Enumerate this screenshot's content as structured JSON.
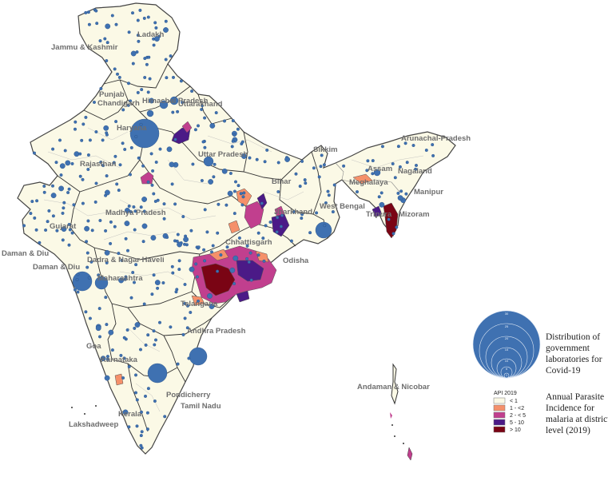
{
  "state_labels": [
    "Ladakh",
    "Jammu & Kashmir",
    "Himachal Pradesh",
    "Punjab",
    "Chandigarh",
    "Uttarakhand",
    "Haryana",
    "Uttar Pradesh",
    "Sikkim",
    "Arunachal-Pradesh",
    "Rajasthan",
    "Assam",
    "Nagaland",
    "Bihar",
    "Meghalaya",
    "Manipur",
    "West Bengal",
    "Jharkhand",
    "Madhya Pradesh",
    "Tripura",
    "Mizoram",
    "Gujarat",
    "Daman & Diu",
    "Chhattisgarh",
    "Odisha",
    "Daman & Diu",
    "Dadra & Nagar Haveli",
    "Maharashtra",
    "Telangana",
    "Andhra Pradesh",
    "Goa",
    "Karnataka",
    "Pondicherry",
    "Tamil Nadu",
    "Kerala",
    "Lakshadweep",
    "Andaman & Nicobar"
  ],
  "legend": {
    "labs_title": "Distribution of government laboratories for Covid-19",
    "labs_title_lines": [
      "Distribution of",
      "government",
      "laboratories  for",
      "Covid-19"
    ],
    "labs_ring_values": [
      "30",
      "25",
      "20",
      "15",
      "10",
      "5",
      "1"
    ],
    "api_header": "API 2019",
    "api_title_lines": [
      "Annual Parasite",
      "Incidence for",
      "malaria at district",
      "level (2019)"
    ],
    "api_classes": [
      {
        "label": "< 1",
        "color": "#fbf9e6"
      },
      {
        "label": "1 - <2",
        "color": "#f5906a"
      },
      {
        "label": "2 - < 5",
        "color": "#c13f8e"
      },
      {
        "label": "5 - 10",
        "color": "#4b1a87"
      },
      {
        "label": "> 10",
        "color": "#7a0414"
      }
    ]
  },
  "colors": {
    "land": "#fbf9e6",
    "border": "#555555",
    "lab_dot": "#3f71b1",
    "label_text": "#6e6e6e"
  }
}
